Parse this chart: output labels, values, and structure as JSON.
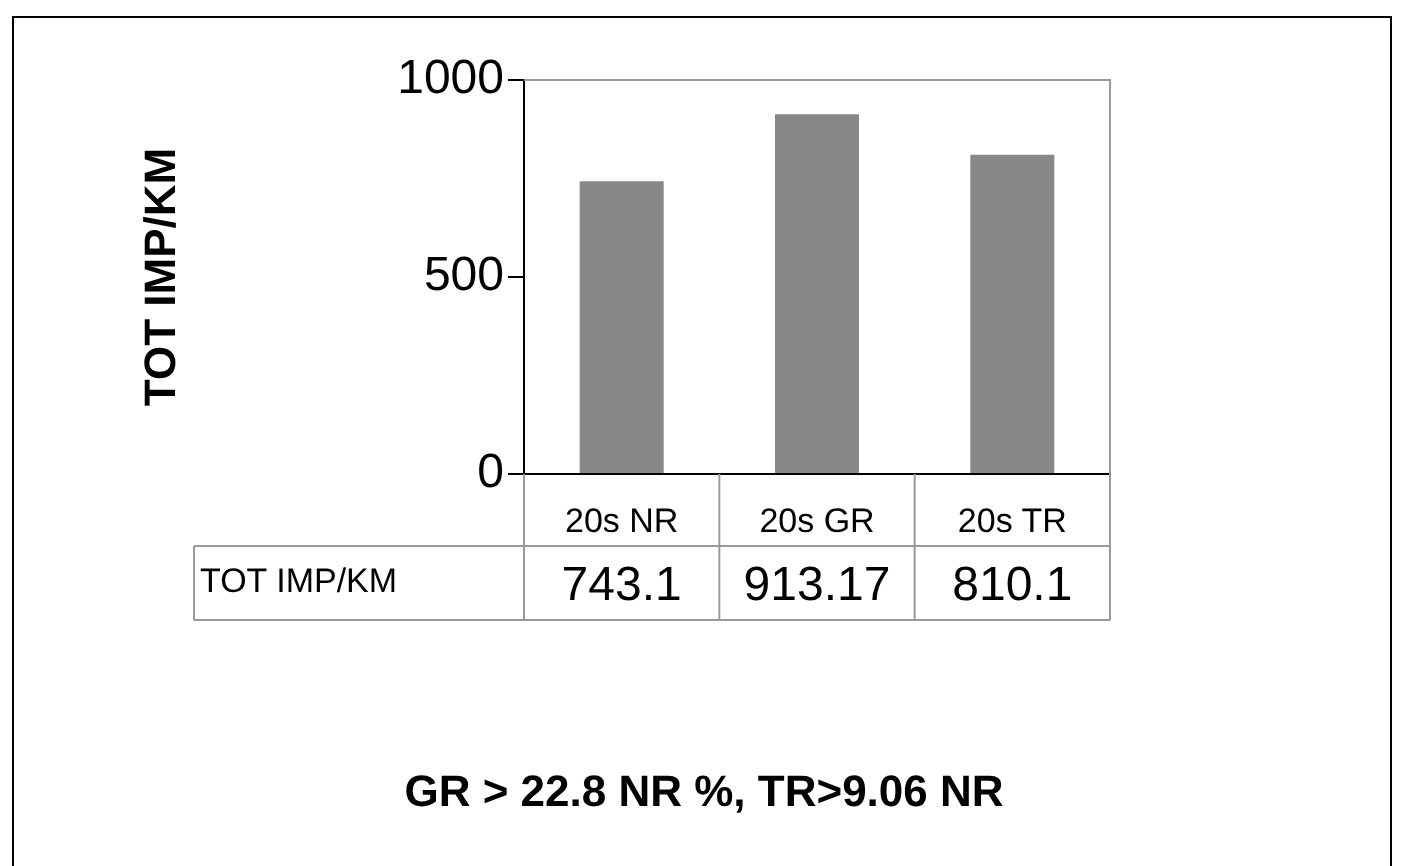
{
  "chart_data": {
    "type": "bar",
    "ylabel": "TOT IMP/KM",
    "categories": [
      "20s NR",
      "20s GR",
      "20s TR"
    ],
    "series": [
      {
        "name": "TOT IMP/KM",
        "color": "#888888",
        "values": [
          743.1,
          913.17,
          810.1
        ]
      }
    ],
    "ylim": [
      0,
      1000
    ],
    "yticks": [
      0,
      500,
      1000
    ],
    "grid": false,
    "legend": false,
    "data_labels": true,
    "annotations": [
      "GR > 22.8 NR %, TR>9.06 NR"
    ]
  }
}
